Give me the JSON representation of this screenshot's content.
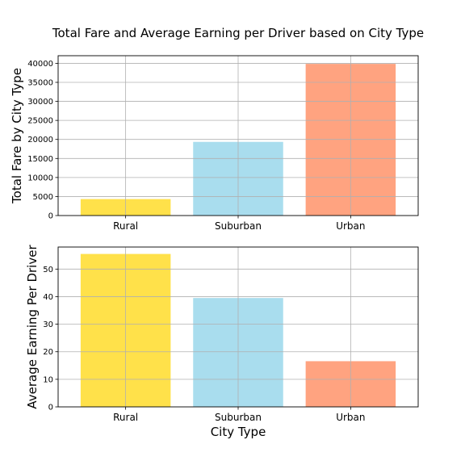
{
  "title": "Total Fare and Average Earning per Driver based on City Type",
  "xlabel": "City Type",
  "chart_data": [
    {
      "type": "bar",
      "categories": [
        "Rural",
        "Suburban",
        "Urban"
      ],
      "values": [
        4327.93,
        19356.33,
        39854.38
      ],
      "ylabel": "Total Fare by City Type",
      "ylim": [
        0,
        42000
      ],
      "yticks": [
        0,
        5000,
        10000,
        15000,
        20000,
        25000,
        30000,
        35000,
        40000
      ],
      "colors": [
        "#FFE14A",
        "#A9DDEE",
        "#FFA380"
      ],
      "grid": true,
      "legend": "none"
    },
    {
      "type": "bar",
      "categories": [
        "Rural",
        "Suburban",
        "Urban"
      ],
      "values": [
        55.49,
        39.5,
        16.57
      ],
      "ylabel": "Average Earning Per Driver",
      "ylim": [
        0,
        58
      ],
      "yticks": [
        0,
        10,
        20,
        30,
        40,
        50
      ],
      "colors": [
        "#FFE14A",
        "#A9DDEE",
        "#FFA380"
      ],
      "grid": true,
      "legend": "none"
    }
  ]
}
